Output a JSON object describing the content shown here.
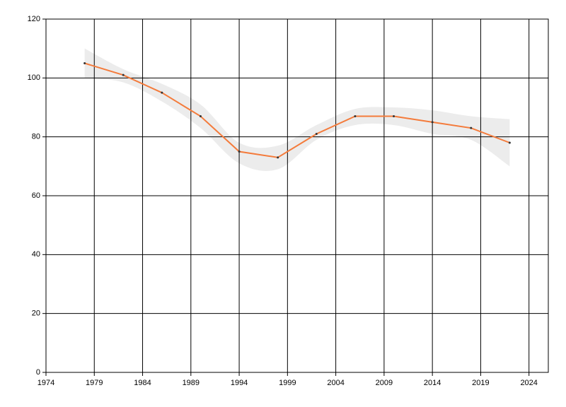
{
  "chart_data": {
    "type": "line",
    "x": [
      1978,
      1982,
      1986,
      1990,
      1994,
      1998,
      2002,
      2006,
      2010,
      2014,
      2018,
      2022
    ],
    "values": [
      105,
      101,
      95,
      87,
      75,
      73,
      81,
      87,
      87,
      85,
      83,
      78
    ],
    "color": "#f47b3b",
    "marker_color": "#333333",
    "band": {
      "lower": [
        100,
        98.5,
        92,
        83,
        71,
        69,
        79,
        84,
        84,
        81,
        79,
        70
      ],
      "upper": [
        110,
        103,
        98,
        91,
        78,
        77,
        84,
        89.5,
        90,
        89,
        87,
        86
      ],
      "color": "#ececec"
    },
    "xlim": [
      1974,
      2026
    ],
    "xticks": [
      1974,
      1979,
      1984,
      1989,
      1994,
      1999,
      2004,
      2009,
      2014,
      2019,
      2024
    ],
    "ylim": [
      0,
      120
    ],
    "yticks": [
      0,
      20,
      40,
      60,
      80,
      100,
      120
    ],
    "grid": true
  }
}
